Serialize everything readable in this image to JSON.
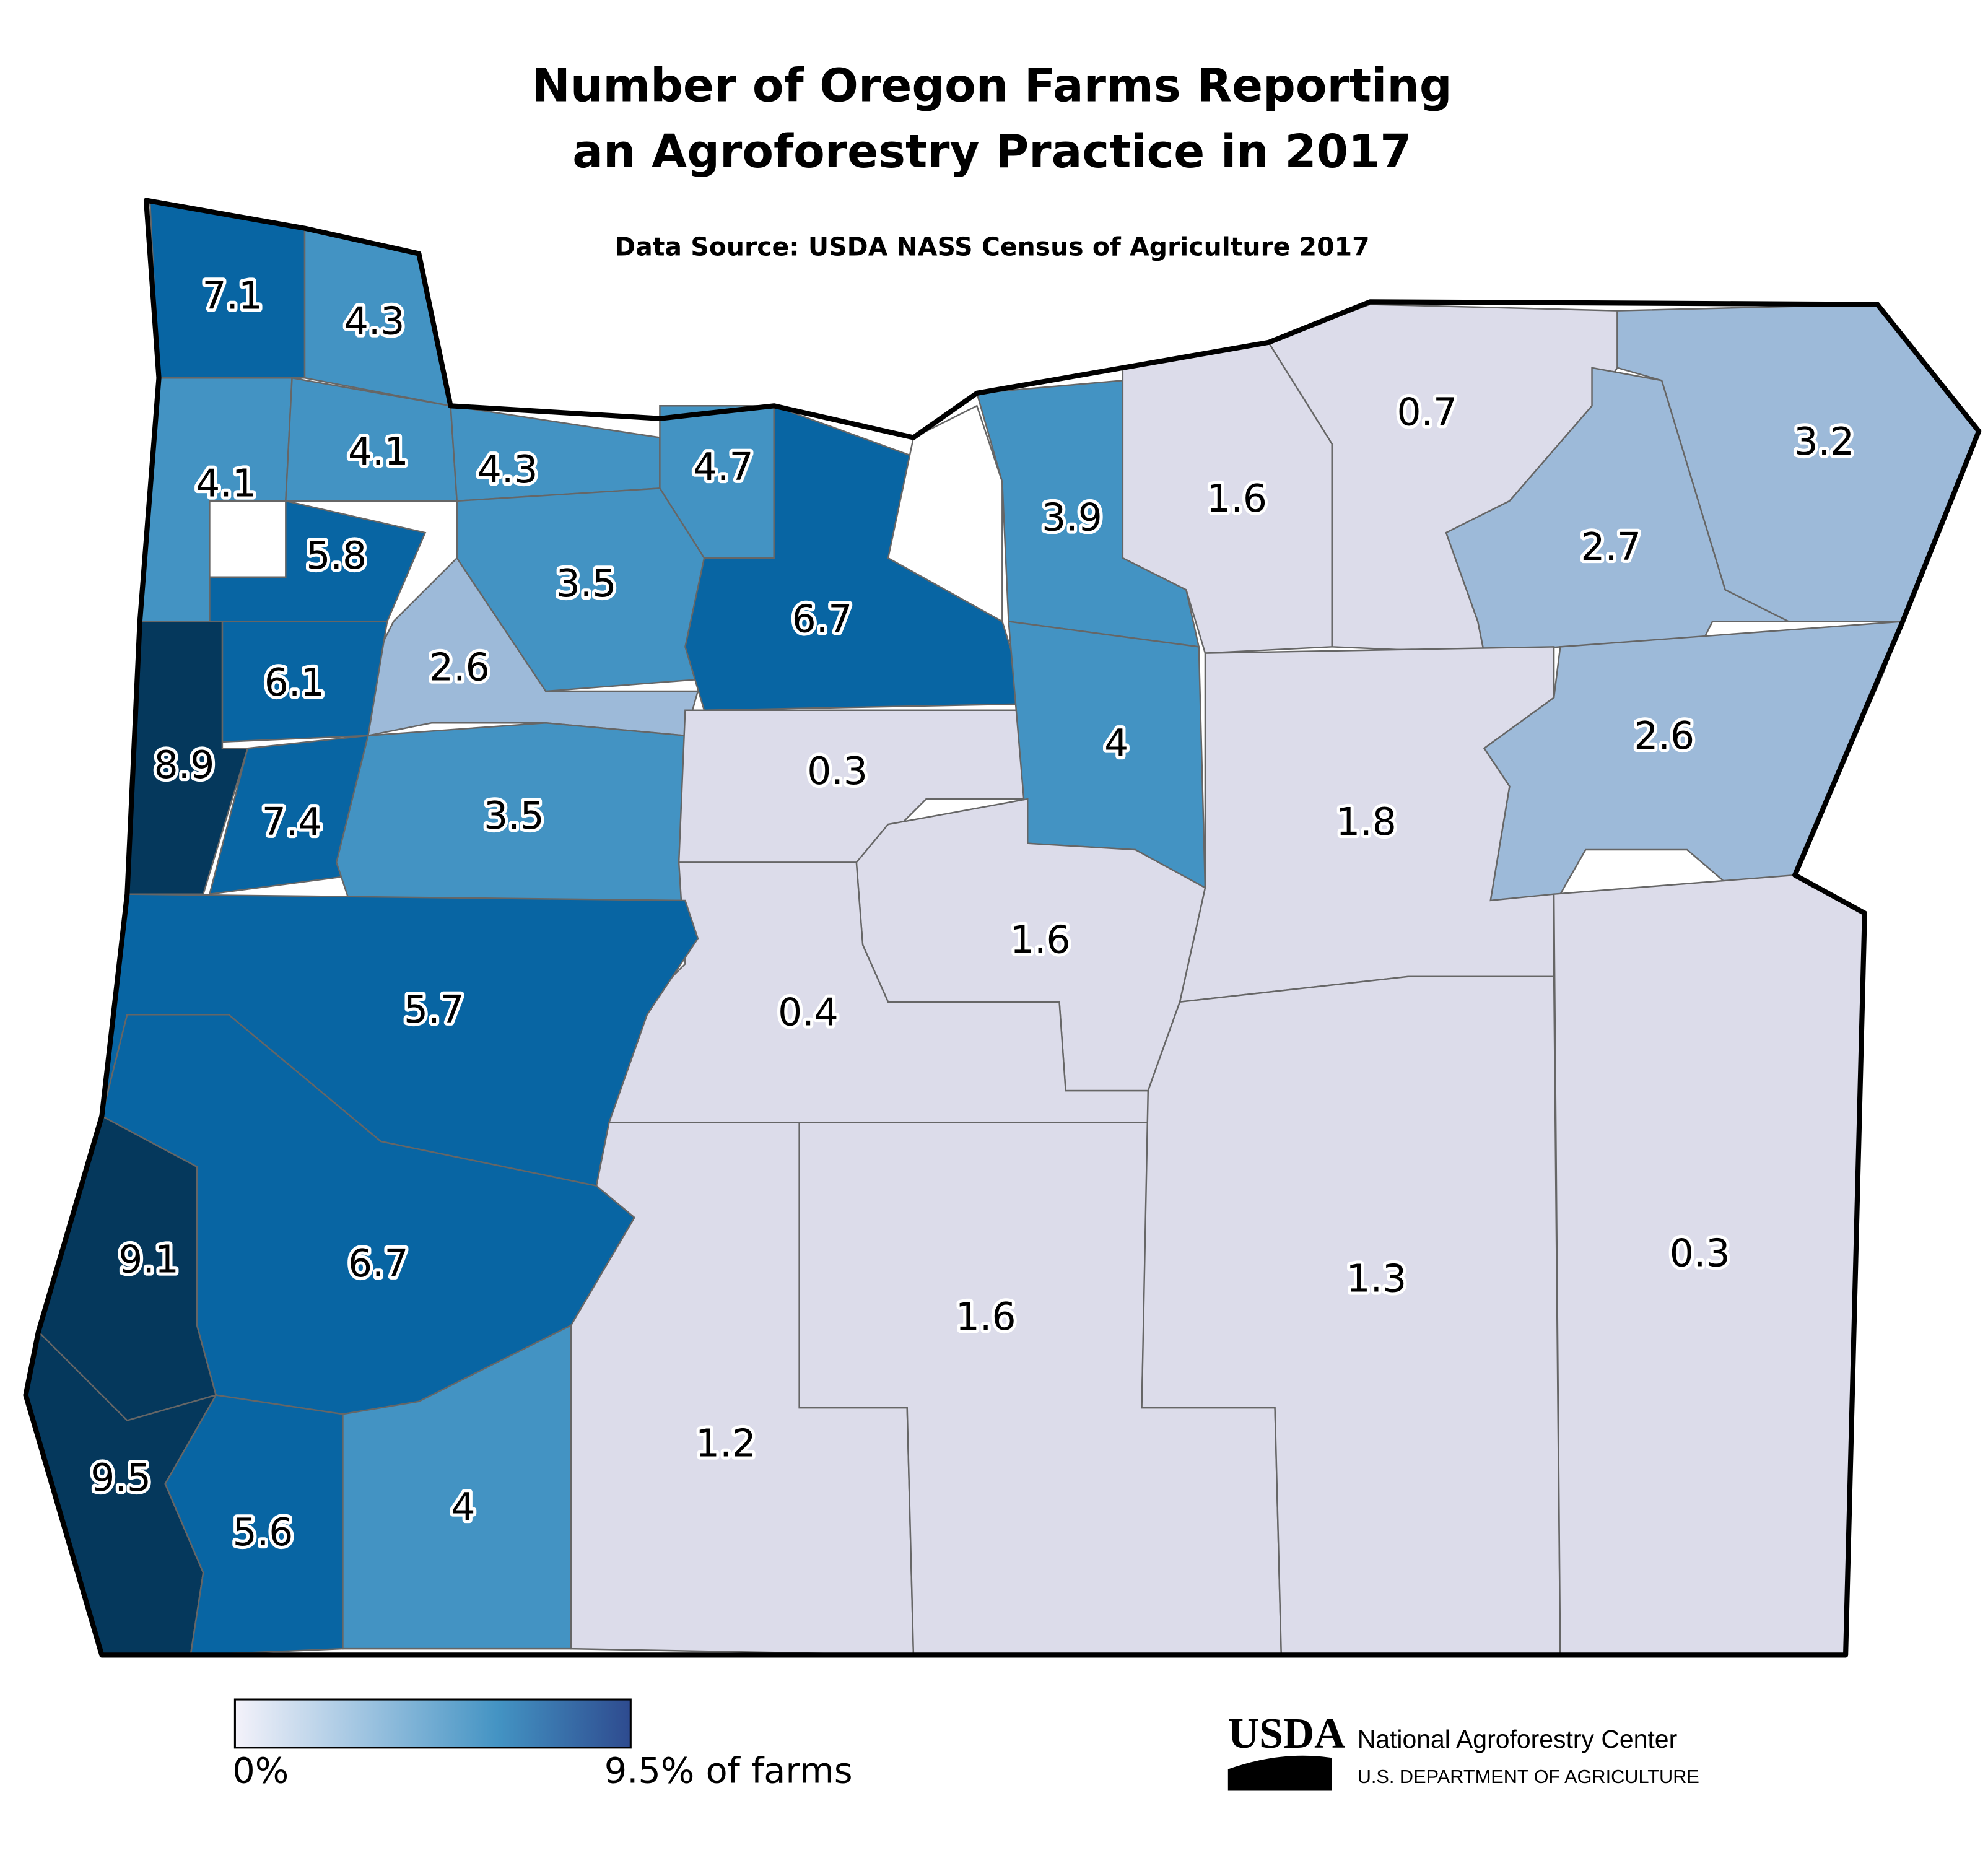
{
  "title": [
    "Number of Oregon Farms Reporting",
    "an Agroforestry Practice in 2017"
  ],
  "subtitle": "Data Source: USDA NASS Census of Agriculture 2017",
  "regions": [
    {
      "value": 7.1,
      "color": "#0865a3"
    },
    {
      "value": 4.3,
      "color": "#4393c3"
    },
    {
      "value": 4.1,
      "color": "#4393c3"
    },
    {
      "value": 4.1,
      "color": "#4393c3"
    },
    {
      "value": 4.3,
      "color": "#4393c3"
    },
    {
      "value": 4.7,
      "color": "#4393c3"
    },
    {
      "value": 5.8,
      "color": "#0865a3"
    },
    {
      "value": 3.5,
      "color": "#4393c3"
    },
    {
      "value": 6.7,
      "color": "#0865a3"
    },
    {
      "color": "#ffffff"
    },
    {
      "value": 3.9,
      "color": "#4393c3"
    },
    {
      "value": 1.6,
      "color": "#dcdcea"
    },
    {
      "value": 0.7,
      "color": "#dcdcea"
    },
    {
      "value": 3.2,
      "color": "#9dbad9"
    },
    {
      "value": 2.7,
      "color": "#9dbad9"
    },
    {
      "value": 2.6,
      "color": "#9dbad9"
    },
    {
      "value": 2.6,
      "color": "#9dbad9"
    },
    {
      "value": 6.1,
      "color": "#0865a3"
    },
    {
      "value": 8.9,
      "color": "#05385c"
    },
    {
      "value": 7.4,
      "color": "#0865a3"
    },
    {
      "value": 3.5,
      "color": "#4393c3"
    },
    {
      "value": 0.3,
      "color": "#dcdcea"
    },
    {
      "value": 4,
      "color": "#4393c3"
    },
    {
      "value": 1.8,
      "color": "#dcdcea"
    },
    {
      "value": 1.6,
      "color": "#dcdcea"
    },
    {
      "value": 0.4,
      "color": "#dcdcea"
    },
    {
      "value": 5.7,
      "color": "#0865a3"
    },
    {
      "value": 6.7,
      "color": "#0865a3"
    },
    {
      "value": 9.1,
      "color": "#05385c"
    },
    {
      "value": 9.5,
      "color": "#05385c"
    },
    {
      "value": 5.6,
      "color": "#0865a3"
    },
    {
      "value": 4,
      "color": "#4393c3"
    },
    {
      "value": 1.2,
      "color": "#dcdcea"
    },
    {
      "value": 1.6,
      "color": "#dcdcea"
    },
    {
      "value": 1.3,
      "color": "#dcdcea"
    },
    {
      "value": 0.3,
      "color": "#dcdcea"
    }
  ],
  "legend": {
    "min_label": "0%",
    "max_label": "9.5% of farms",
    "colors": [
      "#f4f2fa",
      "#9dc3e0",
      "#4393c3",
      "#2e4b8f"
    ]
  },
  "logo": {
    "mark": "USDA",
    "name": "National Agroforestry Center",
    "department": "U.S. DEPARTMENT OF AGRICULTURE"
  }
}
